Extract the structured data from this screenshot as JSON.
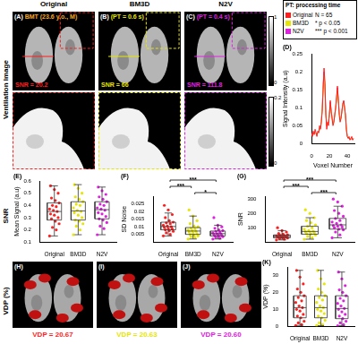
{
  "images": {
    "row_labels": [
      "Ventilation Image",
      "SNR",
      "VDP (%)"
    ],
    "ventilation": [
      {
        "header": "Original",
        "label": "(A)",
        "caption": "BMT (23.6 y.o., M)",
        "snr": "SNR = 20.2"
      },
      {
        "header": "BM3D",
        "label": "(B)",
        "caption": "(PT = 0.6 s)",
        "snr": "SNR = 66"
      },
      {
        "header": "N2V",
        "label": "(C)",
        "caption": "(PT = 0.4 s)",
        "snr": "SNR = 111.8"
      }
    ],
    "colorbar": [
      1,
      0
    ],
    "zoom_colorbar": [
      0.2,
      0
    ],
    "vdp": [
      {
        "label": "(H)",
        "text": "VDP = 20.67"
      },
      {
        "label": "(I)",
        "text": "VDP = 20.63"
      },
      {
        "label": "(J)",
        "text": "VDP = 20.60"
      }
    ]
  },
  "key": {
    "title": "PT: processing time",
    "items": [
      {
        "label": "Original",
        "color": "#ff1f1f"
      },
      {
        "label": "BM3D",
        "color": "#e6e600"
      },
      {
        "label": "N2V",
        "color": "#e020e0"
      }
    ],
    "notes": [
      "N = 65",
      "* p < 0.05",
      "*** p < 0.001"
    ]
  },
  "chart_data": [
    {
      "type": "line",
      "title": "(D)",
      "x_label": "Voxel Number",
      "y_label": "Signal Intensity (a.u)",
      "x": [
        0,
        1,
        2,
        3,
        4,
        5,
        6,
        7,
        8,
        9,
        10,
        11,
        12,
        13,
        14,
        15,
        16,
        17,
        18,
        19,
        20,
        21,
        22,
        23,
        24,
        25,
        26,
        27,
        28,
        29,
        30,
        31,
        32,
        33,
        34,
        35,
        36,
        37,
        38,
        39,
        40,
        41,
        42,
        43,
        44,
        45,
        46,
        47
      ],
      "series": [
        {
          "name": "Original",
          "color": "#ff1f1f",
          "values": [
            0.03,
            0.02,
            0.035,
            0.025,
            0.04,
            0.03,
            0.02,
            0.035,
            0.03,
            0.05,
            0.04,
            0.06,
            0.09,
            0.15,
            0.21,
            0.17,
            0.08,
            0.04,
            0.06,
            0.05,
            0.08,
            0.12,
            0.09,
            0.07,
            0.05,
            0.06,
            0.08,
            0.1,
            0.13,
            0.16,
            0.12,
            0.08,
            0.06,
            0.07,
            0.09,
            0.11,
            0.12,
            0.1,
            0.08,
            0.04,
            0.02,
            0.015,
            0.02,
            0.01,
            0.015,
            0.02,
            0.01,
            0.015
          ]
        },
        {
          "name": "BM3D",
          "color": "#e6e600",
          "values": [
            0.025,
            0.025,
            0.028,
            0.03,
            0.03,
            0.028,
            0.028,
            0.03,
            0.032,
            0.04,
            0.045,
            0.06,
            0.1,
            0.16,
            0.19,
            0.15,
            0.08,
            0.05,
            0.055,
            0.06,
            0.08,
            0.11,
            0.09,
            0.07,
            0.055,
            0.06,
            0.08,
            0.1,
            0.12,
            0.15,
            0.12,
            0.085,
            0.065,
            0.07,
            0.09,
            0.11,
            0.115,
            0.1,
            0.075,
            0.04,
            0.022,
            0.016,
            0.016,
            0.014,
            0.014,
            0.015,
            0.013,
            0.013
          ]
        },
        {
          "name": "N2V",
          "color": "#e020e0",
          "values": [
            0.026,
            0.026,
            0.027,
            0.029,
            0.03,
            0.029,
            0.029,
            0.03,
            0.033,
            0.04,
            0.046,
            0.062,
            0.1,
            0.165,
            0.2,
            0.16,
            0.085,
            0.05,
            0.057,
            0.06,
            0.082,
            0.115,
            0.092,
            0.072,
            0.056,
            0.062,
            0.082,
            0.1,
            0.125,
            0.155,
            0.125,
            0.087,
            0.066,
            0.071,
            0.092,
            0.112,
            0.118,
            0.1,
            0.077,
            0.041,
            0.022,
            0.015,
            0.015,
            0.013,
            0.013,
            0.014,
            0.012,
            0.012
          ]
        }
      ],
      "xlim": [
        0,
        48
      ],
      "xticks": [
        0,
        20,
        40
      ],
      "ylim": [
        0,
        0.25
      ],
      "yticks": [
        0,
        0.05,
        0.1,
        0.15,
        0.2,
        0.25
      ],
      "grid": false
    },
    {
      "type": "box",
      "title": "(E)",
      "y_label": "Mean Signal (a.u)",
      "categories": [
        "Original",
        "BM3D",
        "N2V"
      ],
      "series": [
        {
          "color": "#ff1f1f",
          "min": 0.15,
          "q1": 0.28,
          "median": 0.35,
          "q3": 0.42,
          "max": 0.56,
          "points": [
            0.15,
            0.2,
            0.22,
            0.25,
            0.27,
            0.29,
            0.3,
            0.32,
            0.33,
            0.35,
            0.36,
            0.37,
            0.39,
            0.4,
            0.42,
            0.44,
            0.46,
            0.5,
            0.53,
            0.56
          ]
        },
        {
          "color": "#e6e600",
          "min": 0.16,
          "q1": 0.28,
          "median": 0.355,
          "q3": 0.43,
          "max": 0.57,
          "points": [
            0.16,
            0.2,
            0.23,
            0.25,
            0.27,
            0.28,
            0.3,
            0.32,
            0.34,
            0.35,
            0.36,
            0.38,
            0.4,
            0.41,
            0.43,
            0.45,
            0.47,
            0.5,
            0.54,
            0.57
          ]
        },
        {
          "color": "#e020e0",
          "min": 0.16,
          "q1": 0.29,
          "median": 0.365,
          "q3": 0.43,
          "max": 0.55,
          "points": [
            0.16,
            0.21,
            0.23,
            0.26,
            0.28,
            0.29,
            0.31,
            0.33,
            0.34,
            0.36,
            0.37,
            0.38,
            0.4,
            0.41,
            0.43,
            0.45,
            0.47,
            0.49,
            0.52,
            0.55
          ]
        }
      ],
      "ylim": [
        0.1,
        0.6
      ],
      "yticks": [
        0.1,
        0.2,
        0.3,
        0.4,
        0.5,
        0.6
      ],
      "grid": false
    },
    {
      "type": "box",
      "title": "(F)",
      "y_label": "SD Noise",
      "categories": [
        "Original",
        "BM3D",
        "N2V"
      ],
      "series": [
        {
          "color": "#ff1f1f",
          "min": 0.004,
          "q1": 0.008,
          "median": 0.0102,
          "q3": 0.013,
          "max": 0.019,
          "points": [
            0.004,
            0.005,
            0.006,
            0.007,
            0.0075,
            0.008,
            0.0085,
            0.009,
            0.0095,
            0.01,
            0.0105,
            0.011,
            0.012,
            0.0125,
            0.013,
            0.014,
            0.016,
            0.018,
            0.021,
            0.024
          ]
        },
        {
          "color": "#e6e600",
          "min": 0.002,
          "q1": 0.005,
          "median": 0.0072,
          "q3": 0.0095,
          "max": 0.017,
          "points": [
            0.002,
            0.003,
            0.0035,
            0.004,
            0.0045,
            0.005,
            0.0055,
            0.006,
            0.0065,
            0.007,
            0.0075,
            0.008,
            0.0085,
            0.009,
            0.01,
            0.0105,
            0.012,
            0.014,
            0.017,
            0.021
          ]
        },
        {
          "color": "#e020e0",
          "min": 0.002,
          "q1": 0.004,
          "median": 0.0055,
          "q3": 0.0072,
          "max": 0.011,
          "points": [
            0.002,
            0.0025,
            0.003,
            0.0035,
            0.004,
            0.004,
            0.0045,
            0.005,
            0.005,
            0.0055,
            0.0055,
            0.006,
            0.0065,
            0.007,
            0.0075,
            0.008,
            0.009,
            0.01,
            0.011,
            0.016
          ]
        }
      ],
      "significance": [
        {
          "pair": [
            "BM3D",
            "N2V"
          ],
          "label": "*"
        },
        {
          "pair": [
            "Original",
            "BM3D"
          ],
          "label": "***"
        },
        {
          "pair": [
            "Original",
            "N2V"
          ],
          "label": "***"
        }
      ],
      "ylim": [
        0,
        0.03
      ],
      "yticks": [
        0.005,
        0.01,
        0.015,
        0.02,
        0.025
      ],
      "grid": false
    },
    {
      "type": "box",
      "title": "(G)",
      "y_label": "SNR",
      "categories": [
        "Original",
        "BM3D",
        "N2V"
      ],
      "series": [
        {
          "color": "#ff1f1f",
          "min": 15,
          "q1": 30,
          "median": 40,
          "q3": 50,
          "max": 80,
          "points": [
            15,
            20,
            24,
            28,
            30,
            32,
            34,
            36,
            38,
            40,
            41,
            43,
            45,
            48,
            50,
            55,
            60,
            70,
            80,
            100
          ]
        },
        {
          "color": "#e6e600",
          "min": 20,
          "q1": 55,
          "median": 74,
          "q3": 110,
          "max": 170,
          "points": [
            20,
            30,
            40,
            50,
            55,
            60,
            65,
            70,
            72,
            75,
            80,
            90,
            100,
            110,
            120,
            135,
            150,
            170,
            200,
            225
          ]
        },
        {
          "color": "#e020e0",
          "min": 30,
          "q1": 90,
          "median": 120,
          "q3": 165,
          "max": 250,
          "points": [
            30,
            50,
            70,
            85,
            90,
            100,
            105,
            110,
            115,
            120,
            130,
            140,
            150,
            165,
            180,
            200,
            220,
            250,
            280,
            300
          ]
        }
      ],
      "significance": [
        {
          "pair": [
            "BM3D",
            "N2V"
          ],
          "label": "***"
        },
        {
          "pair": [
            "Original",
            "BM3D"
          ],
          "label": "***"
        },
        {
          "pair": [
            "Original",
            "N2V"
          ],
          "label": "***"
        }
      ],
      "ylim": [
        0,
        320
      ],
      "yticks": [
        100,
        200,
        300
      ],
      "grid": false
    },
    {
      "type": "box",
      "title": "(K)",
      "y_label": "VDP (%)",
      "categories": [
        "Original",
        "BM3D",
        "N2V"
      ],
      "series": [
        {
          "color": "#ff1f1f",
          "min": 0.5,
          "q1": 5,
          "median": 11,
          "q3": 18,
          "max": 33,
          "points": [
            0.5,
            1,
            2,
            3,
            5,
            6,
            7,
            9,
            10,
            11,
            12,
            14,
            15,
            17,
            18,
            20,
            22,
            25,
            29,
            33
          ]
        },
        {
          "color": "#e6e600",
          "min": 0.4,
          "q1": 5,
          "median": 11,
          "q3": 18,
          "max": 33,
          "points": [
            0.4,
            1,
            2,
            3.5,
            5,
            6,
            7.5,
            9,
            10,
            11,
            12,
            14,
            15.5,
            17,
            18,
            20,
            22,
            25,
            28,
            33
          ]
        },
        {
          "color": "#e020e0",
          "min": 0.3,
          "q1": 4.5,
          "median": 10.5,
          "q3": 18,
          "max": 32,
          "points": [
            0.3,
            1,
            2,
            3,
            4.5,
            6,
            7,
            8.5,
            10,
            10.5,
            12,
            13.5,
            15,
            16.5,
            18,
            20,
            21.5,
            24,
            28,
            32
          ]
        }
      ],
      "ylim": [
        0,
        35
      ],
      "yticks": [
        0,
        10,
        20,
        30
      ],
      "grid": false
    }
  ]
}
